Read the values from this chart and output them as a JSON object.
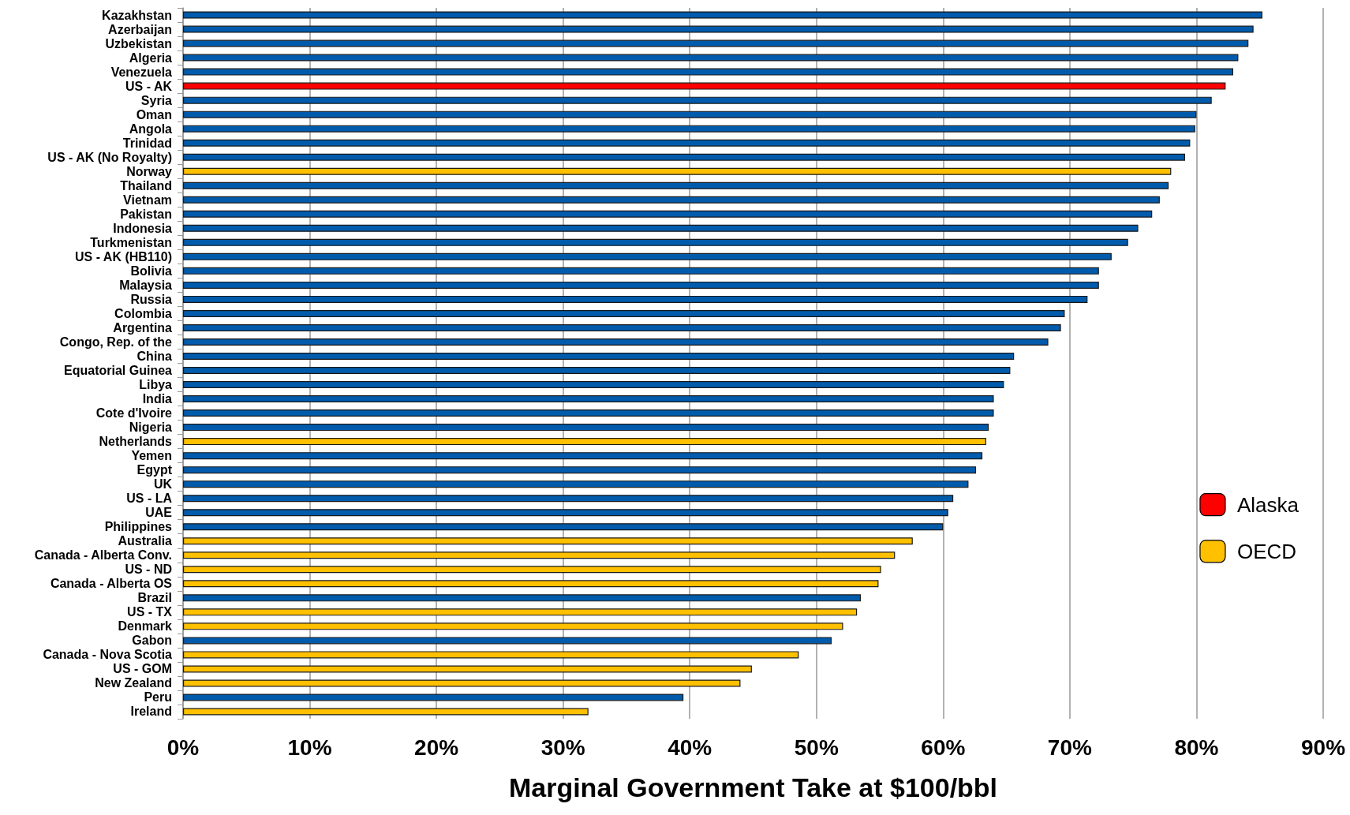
{
  "chart_data": {
    "type": "bar",
    "orientation": "horizontal",
    "xlabel": "Marginal Government Take at $100/bbl",
    "categories": [
      "Kazakhstan",
      "Azerbaijan",
      "Uzbekistan",
      "Algeria",
      "Venezuela",
      "US - AK",
      "Syria",
      "Oman",
      "Angola",
      "Trinidad",
      "US - AK (No Royalty)",
      "Norway",
      "Thailand",
      "Vietnam",
      "Pakistan",
      "Indonesia",
      "Turkmenistan",
      "US - AK (HB110)",
      "Bolivia",
      "Malaysia",
      "Russia",
      "Colombia",
      "Argentina",
      "Congo, Rep. of the",
      "China",
      "Equatorial Guinea",
      "Libya",
      "India",
      "Cote d'Ivoire",
      "Nigeria",
      "Netherlands",
      "Yemen",
      "Egypt",
      "UK",
      "US - LA",
      "UAE",
      "Philippines",
      "Australia",
      "Canada - Alberta Conv.",
      "US - ND",
      "Canada - Alberta OS",
      "Brazil",
      "US - TX",
      "Denmark",
      "Gabon",
      "Canada - Nova Scotia",
      "US - GOM",
      "New Zealand",
      "Peru",
      "Ireland"
    ],
    "series": [
      {
        "color": "#005bac",
        "values": [
          85.2,
          84.5,
          84.1,
          83.3,
          82.9,
          null,
          81.2,
          80.0,
          79.9,
          79.5,
          79.1,
          null,
          77.8,
          77.1,
          76.5,
          75.4,
          74.6,
          73.3,
          72.3,
          72.3,
          71.4,
          69.6,
          69.3,
          68.3,
          65.6,
          65.3,
          64.8,
          64.0,
          64.0,
          63.6,
          null,
          63.1,
          62.6,
          62.0,
          60.8,
          60.4,
          60.0,
          null,
          null,
          null,
          null,
          53.5,
          null,
          null,
          51.2,
          null,
          null,
          null,
          39.5,
          null
        ]
      },
      {
        "name": "Alaska",
        "color": "#ff0000",
        "values": [
          null,
          null,
          null,
          null,
          null,
          82.3,
          null,
          null,
          null,
          null,
          null,
          null,
          null,
          null,
          null,
          null,
          null,
          null,
          null,
          null,
          null,
          null,
          null,
          null,
          null,
          null,
          null,
          null,
          null,
          null,
          null,
          null,
          null,
          null,
          null,
          null,
          null,
          null,
          null,
          null,
          null,
          null,
          null,
          null,
          null,
          null,
          null,
          null,
          null,
          null
        ]
      },
      {
        "name": "OECD",
        "color": "#ffc000",
        "values": [
          null,
          null,
          null,
          null,
          null,
          null,
          null,
          null,
          null,
          null,
          null,
          78.0,
          null,
          null,
          null,
          null,
          null,
          null,
          null,
          null,
          null,
          null,
          null,
          null,
          null,
          null,
          null,
          null,
          null,
          null,
          63.4,
          null,
          null,
          null,
          null,
          null,
          null,
          57.6,
          56.2,
          55.1,
          54.9,
          null,
          53.2,
          52.1,
          null,
          48.6,
          44.9,
          44.0,
          null,
          32.0
        ]
      }
    ],
    "xlim": [
      0,
      90
    ],
    "xticks": [
      {
        "value": 0,
        "label": "0%"
      },
      {
        "value": 10,
        "label": "10%"
      },
      {
        "value": 20,
        "label": "20%"
      },
      {
        "value": 30,
        "label": "30%"
      },
      {
        "value": 40,
        "label": "40%"
      },
      {
        "value": 50,
        "label": "50%"
      },
      {
        "value": 60,
        "label": "60%"
      },
      {
        "value": 70,
        "label": "70%"
      },
      {
        "value": 80,
        "label": "80%"
      },
      {
        "value": 90,
        "label": "90%"
      }
    ],
    "grid": "x",
    "legend": "right"
  }
}
